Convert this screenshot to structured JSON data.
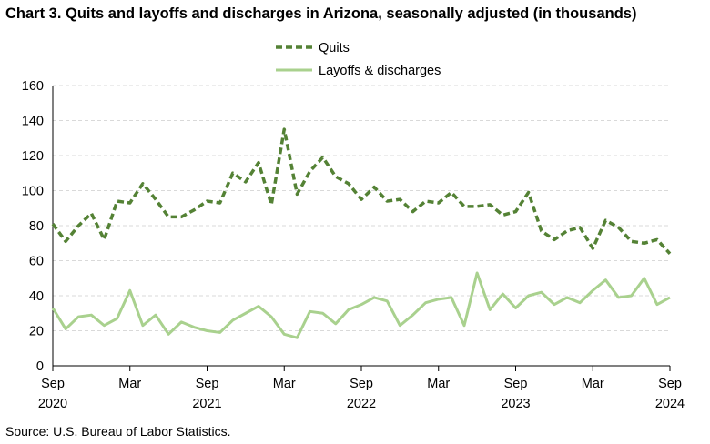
{
  "title": "Chart 3. Quits and layoffs and discharges in Arizona, seasonally adjusted (in thousands)",
  "source": "Source: U.S. Bureau of Labor Statistics.",
  "colors": {
    "quits": "#548235",
    "layoffs": "#a9d18e",
    "grid": "#d9d9d9",
    "axis": "#000000"
  },
  "chart_data": {
    "type": "line",
    "title": "Chart 3. Quits and layoffs and discharges in Arizona, seasonally adjusted (in thousands)",
    "xlabel": "",
    "ylabel": "",
    "ylim": [
      0,
      160
    ],
    "yticks": [
      "0",
      "20",
      "40",
      "60",
      "80",
      "100",
      "120",
      "140",
      "160"
    ],
    "grid": "horizontal dashed",
    "legend": "top-center",
    "x": [
      "2020-09",
      "2020-10",
      "2020-11",
      "2020-12",
      "2021-01",
      "2021-02",
      "2021-03",
      "2021-04",
      "2021-05",
      "2021-06",
      "2021-07",
      "2021-08",
      "2021-09",
      "2021-10",
      "2021-11",
      "2021-12",
      "2022-01",
      "2022-02",
      "2022-03",
      "2022-04",
      "2022-05",
      "2022-06",
      "2022-07",
      "2022-08",
      "2022-09",
      "2022-10",
      "2022-11",
      "2022-12",
      "2023-01",
      "2023-02",
      "2023-03",
      "2023-04",
      "2023-05",
      "2023-06",
      "2023-07",
      "2023-08",
      "2023-09",
      "2023-10",
      "2023-11",
      "2023-12",
      "2024-01",
      "2024-02",
      "2024-03",
      "2024-04",
      "2024-05",
      "2024-06",
      "2024-07",
      "2024-08",
      "2024-09"
    ],
    "x_tick_labels": [
      {
        "month": "Sep",
        "year": "2020"
      },
      {
        "month": "Mar",
        "year": ""
      },
      {
        "month": "Sep",
        "year": "2021"
      },
      {
        "month": "Mar",
        "year": ""
      },
      {
        "month": "Sep",
        "year": "2022"
      },
      {
        "month": "Mar",
        "year": ""
      },
      {
        "month": "Sep",
        "year": "2023"
      },
      {
        "month": "Mar",
        "year": ""
      },
      {
        "month": "Sep",
        "year": "2024"
      }
    ],
    "series": [
      {
        "name": "Quits",
        "style": "dashed",
        "values": [
          81,
          71,
          80,
          87,
          72,
          94,
          93,
          104,
          95,
          85,
          85,
          89,
          94,
          93,
          110,
          105,
          116,
          92,
          135,
          98,
          111,
          119,
          108,
          104,
          95,
          102,
          94,
          95,
          88,
          94,
          93,
          99,
          91,
          91,
          92,
          86,
          88,
          99,
          77,
          72,
          77,
          79,
          67,
          83,
          79,
          71,
          70,
          72,
          64
        ]
      },
      {
        "name": "Layoffs & discharges",
        "style": "solid",
        "values": [
          33,
          21,
          28,
          29,
          23,
          27,
          43,
          23,
          29,
          18,
          25,
          22,
          20,
          19,
          26,
          30,
          34,
          28,
          18,
          16,
          31,
          30,
          24,
          32,
          35,
          39,
          37,
          23,
          29,
          36,
          38,
          39,
          23,
          53,
          32,
          41,
          33,
          40,
          42,
          35,
          39,
          36,
          43,
          49,
          39,
          40,
          50,
          35,
          39
        ]
      }
    ]
  }
}
